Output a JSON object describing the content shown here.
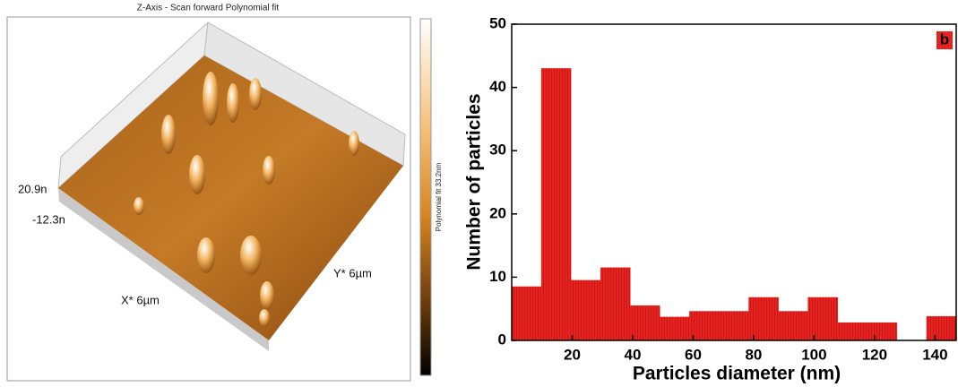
{
  "afm_panel": {
    "title": "Z-Axis - Scan forward   Polynomial fit",
    "z_max_label": "20.9n",
    "z_min_label": "-12.3n",
    "x_axis_label": "X* 6µm",
    "y_axis_label": "Y* 6µm",
    "colorbar_label": "Polynomial fit 33.2nm"
  },
  "chart_data": {
    "type": "histogram",
    "panel_label": "b",
    "x_label": "Particles diameter (nm)",
    "y_label": "Number of particles",
    "bins": [
      0,
      9.8,
      19.6,
      29.4,
      39.2,
      49,
      58.8,
      68.6,
      78.4,
      88.2,
      98,
      107.8,
      117.6,
      127.4,
      137.2,
      147
    ],
    "values": [
      8.5,
      43,
      9.5,
      11.5,
      5.5,
      3.7,
      4.6,
      4.6,
      6.8,
      4.6,
      6.8,
      2.8,
      2.8,
      0,
      3.8
    ],
    "color": "#e8231f",
    "xlim": [
      0,
      147
    ],
    "ylim": [
      0,
      50
    ],
    "xticks": [
      20,
      40,
      60,
      80,
      100,
      120,
      140
    ],
    "yticks": [
      0,
      10,
      20,
      30,
      40,
      50
    ]
  }
}
